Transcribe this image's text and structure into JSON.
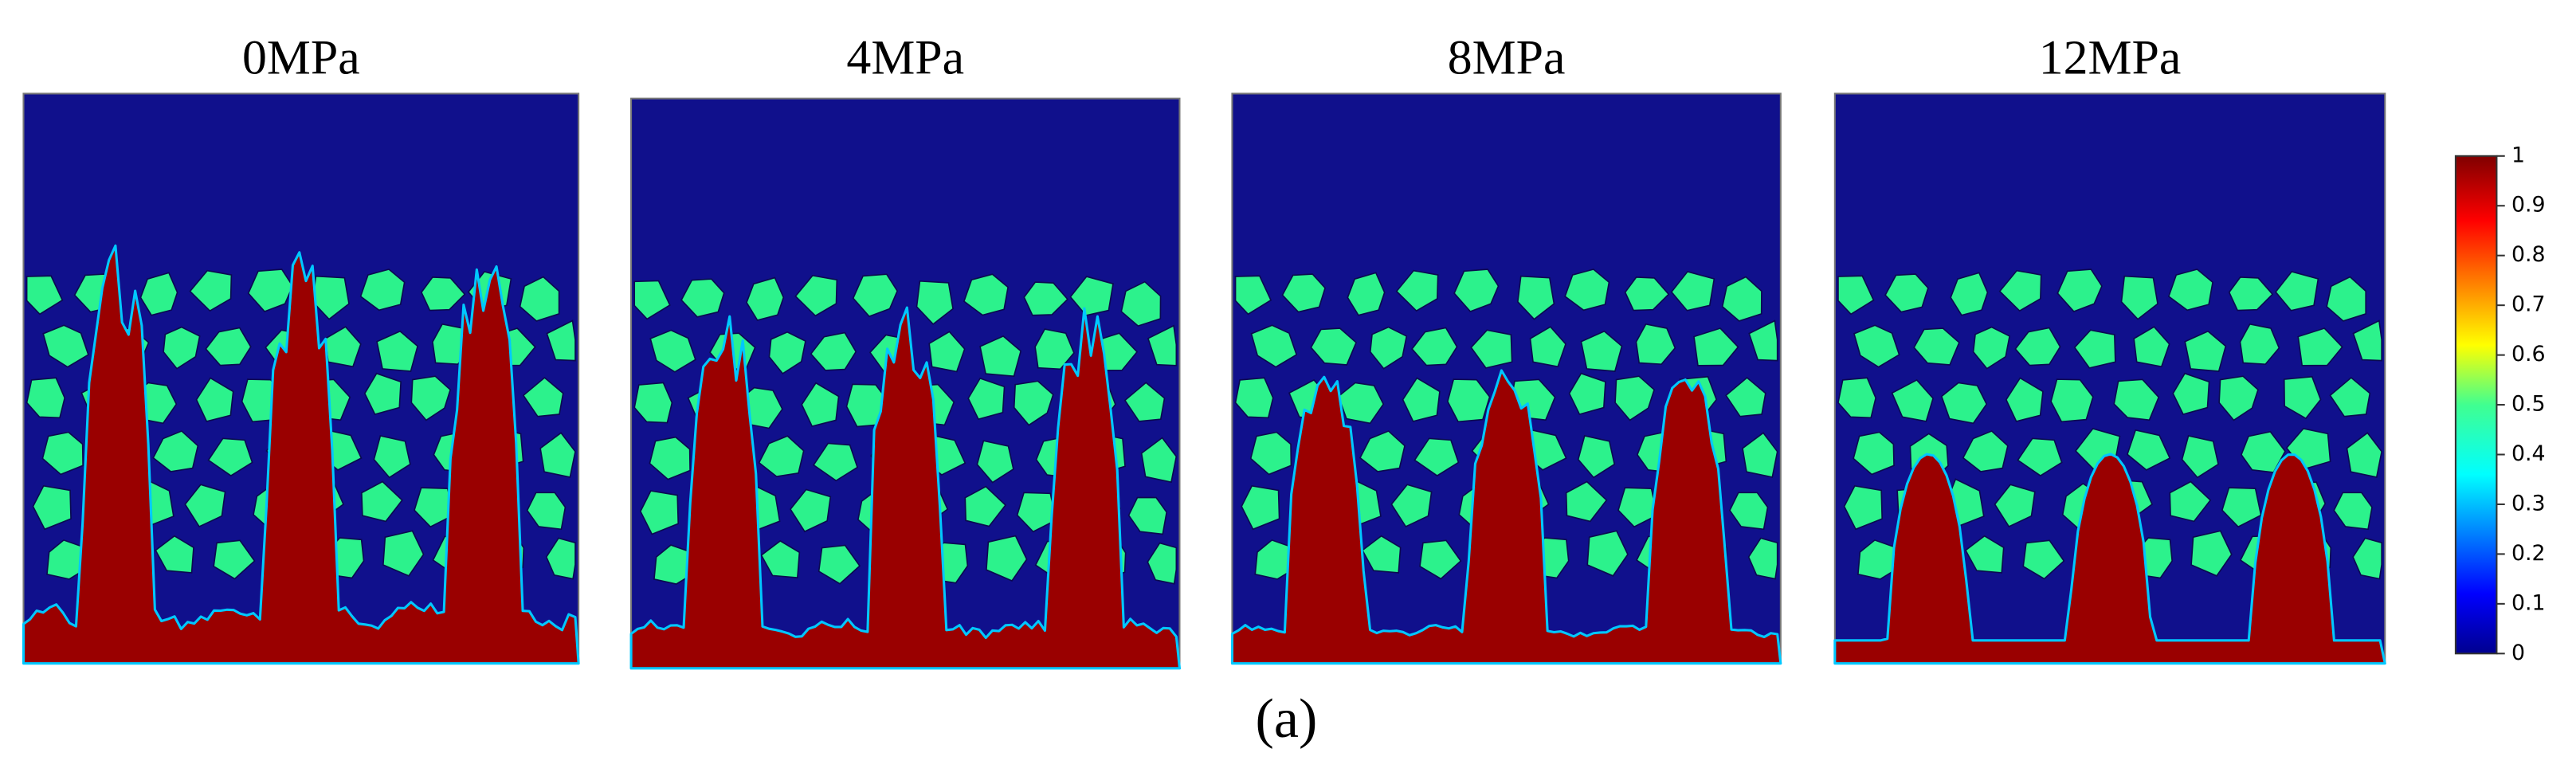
{
  "panels": [
    {
      "title": "0MPa"
    },
    {
      "title": "4MPa"
    },
    {
      "title": "8MPa"
    },
    {
      "title": "12MPa"
    }
  ],
  "colorbar": {
    "range": [
      0,
      1
    ],
    "ticks": [
      0,
      0.1,
      0.2,
      0.3,
      0.4,
      0.5,
      0.6,
      0.7,
      0.8,
      0.9,
      1
    ]
  },
  "caption": "(a)"
}
